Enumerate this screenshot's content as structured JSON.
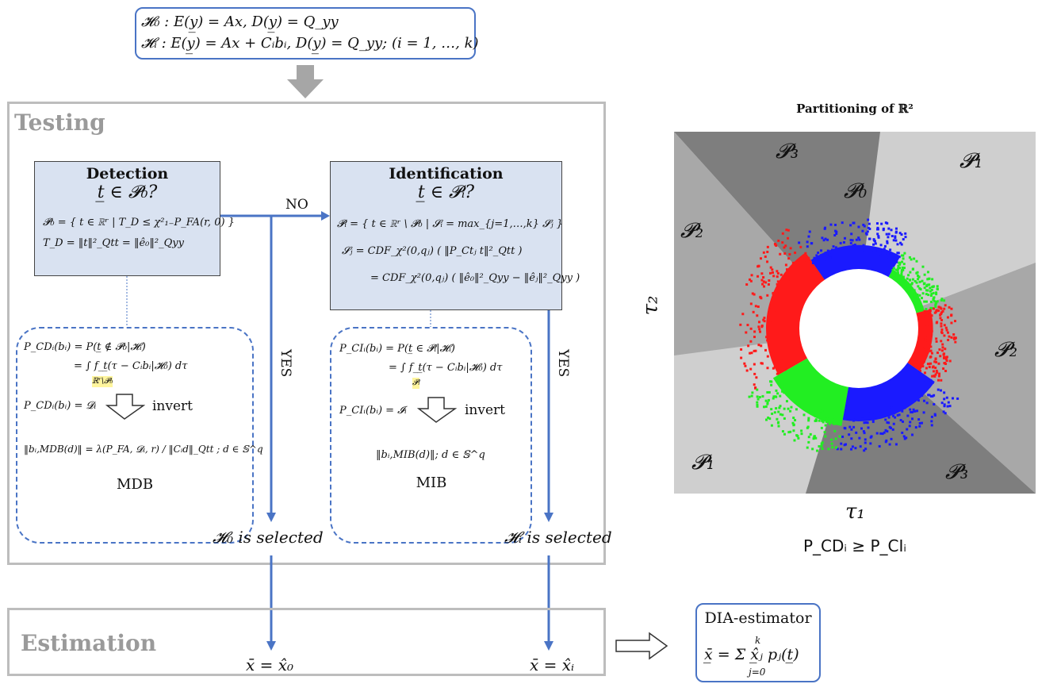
{
  "hypotheses": {
    "h0": "𝓗₀ :  E(y̲) = Ax,  D(y̲) = Q_yy",
    "hi": "𝓗ᵢ :  E(y̲) = Ax + Cᵢbᵢ,  D(y̲) = Q_yy;  (i = 1, …, k)"
  },
  "testing": {
    "title": "Testing",
    "detection": {
      "title": "Detection",
      "question": "t̲ ∈ 𝓟₀?",
      "formula1": "𝓟₀ = { t ∈ ℝʳ | T_D ≤ χ²₁₋P_FA(r, 0) }",
      "formula2": "T_D = ‖t‖²_Qtt = ‖ê₀‖²_Qyy"
    },
    "identification": {
      "title": "Identification",
      "question": "t̲ ∈ 𝓟ᵢ?",
      "formula1": "𝓟ᵢ = { t ∈ ℝʳ \\ 𝓟₀ | 𝓢ᵢ = max_{j=1,…,k} 𝓢ⱼ }",
      "formula2": "𝓢ⱼ  =  CDF_χ²(0,qⱼ) ( ‖P_Ctⱼ t‖²_Qtt )",
      "formula3": "=  CDF_χ²(0,qⱼ) ( ‖ê₀‖²_Qyy − ‖êⱼ‖²_Qyy )"
    },
    "no_label": "NO",
    "yes_label_1": "YES",
    "yes_label_2": "YES",
    "mdb": {
      "line1": "P_CDᵢ(bᵢ)  =  P(t̲ ∉ 𝓟₀|𝓗ᵢ)",
      "line2": "=  ∫ f_t̲(τ − Cᵢbᵢ|𝓗₀) dτ",
      "domain": "ℝʳ\\𝓟₀",
      "assign": "P_CDᵢ(bᵢ) = 𝓓ᵢ",
      "invert": "invert",
      "result": "‖bᵢ,MDB(d)‖ = λ(P_FA, 𝓓ᵢ, r) / ‖Cᵢd‖_Qtt ;  d ∈ 𝕊^q",
      "caption": "MDB"
    },
    "mib": {
      "line1": "P_CIᵢ(bᵢ)  =  P(t̲ ∈ 𝓟ᵢ|𝓗ᵢ)",
      "line2": "=  ∫ f_t̲(τ − Cᵢbᵢ|𝓗₀) dτ",
      "domain": "𝓟ᵢ",
      "assign": "P_CIᵢ(bᵢ) = 𝓘ᵢ",
      "invert": "invert",
      "result": "‖bᵢ,MIB(d)‖;  d ∈ 𝕊^q",
      "caption": "MIB"
    },
    "h0_selected": "𝓗₀ is selected",
    "hi_selected": "𝓗ᵢ is selected"
  },
  "estimation": {
    "title": "Estimation",
    "x0": "x̄ = x̂₀",
    "xi": "x̄ = x̂ᵢ"
  },
  "dia": {
    "title": "DIA-estimator",
    "formula": "x̲̄ = Σ x̲̂ⱼ pⱼ(t̲)",
    "sum_top": "k",
    "sum_bottom": "j=0"
  },
  "partition": {
    "title": "Partitioning of ℝ²",
    "xlabel": "τ₁",
    "ylabel": "τ₂",
    "regions": {
      "p0": "𝓟₀",
      "p1_top": "𝓟₁",
      "p1_bottom": "𝓟₁",
      "p2_left": "𝓟₂",
      "p2_right": "𝓟₂",
      "p3_top": "𝓟₃",
      "p3_bottom": "𝓟₃"
    },
    "caption": "P_CDᵢ ≥ P_CIᵢ",
    "colors": {
      "light_gray": "#cfcfcf",
      "mid_gray": "#a8a8a8",
      "dark_gray": "#7e7e7e",
      "red": "#ff1a1a",
      "green": "#22ee22",
      "blue": "#1a1aff"
    }
  }
}
